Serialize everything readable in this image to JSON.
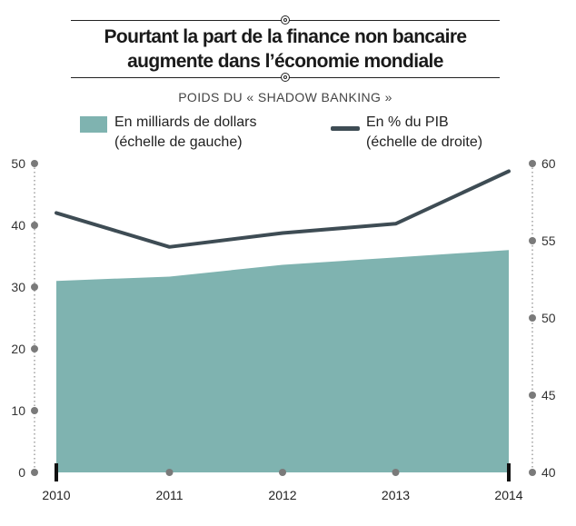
{
  "title_line1": "Pourtant la part de la finance non bancaire",
  "title_line2": "augmente dans l’économie mondiale",
  "subtitle": "POIDS DU « SHADOW BANKING »",
  "legend": {
    "area_line1": "En milliards de dollars",
    "area_line2": "(échelle de gauche)",
    "line_line1": "En % du PIB",
    "line_line2": "(échelle de droite)"
  },
  "colors": {
    "area": "#7fb3b0",
    "line": "#3e4c54",
    "dots": "#7a7a7a",
    "text": "#222222"
  },
  "chart_data": {
    "type": "area",
    "categories": [
      "2010",
      "2011",
      "2012",
      "2013",
      "2014"
    ],
    "series": [
      {
        "name": "En milliards de dollars",
        "type": "area",
        "axis": "left",
        "values": [
          31,
          31.7,
          33.6,
          34.8,
          36
        ]
      },
      {
        "name": "En % du PIB",
        "type": "line",
        "axis": "right",
        "values": [
          56.8,
          54.6,
          55.5,
          56.1,
          59.5
        ]
      }
    ],
    "left_axis": {
      "ylim": [
        0,
        50
      ],
      "ticks": [
        0,
        10,
        20,
        30,
        40,
        50
      ]
    },
    "right_axis": {
      "ylim": [
        40,
        60
      ],
      "ticks": [
        40,
        45,
        50,
        55,
        60
      ]
    },
    "legend_position": "top"
  }
}
